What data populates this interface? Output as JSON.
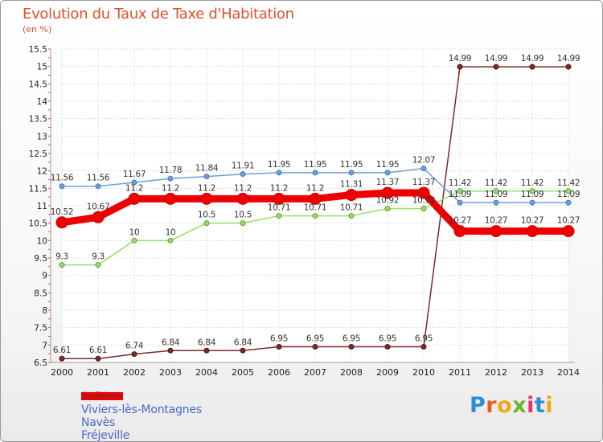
{
  "chart_data": {
    "type": "line",
    "title": "Evolution du Taux de Taxe d'Habitation",
    "ylabel": "(en %)",
    "x": [
      "2000",
      "2001",
      "2002",
      "2003",
      "2004",
      "2005",
      "2006",
      "2007",
      "2008",
      "2009",
      "2010",
      "2011",
      "2012",
      "2013",
      "2014"
    ],
    "ylim": [
      6.5,
      15.5
    ],
    "yticks": [
      "6.5",
      "7",
      "7.5",
      "8",
      "8.5",
      "9",
      "9.5",
      "10",
      "10.5",
      "11",
      "11.5",
      "12",
      "12.5",
      "13",
      "13.5",
      "14",
      "14.5",
      "15",
      "15.5"
    ],
    "series": [
      {
        "name": "SAïX",
        "color": "#ee0000",
        "values": [
          10.52,
          10.67,
          11.2,
          11.2,
          11.2,
          11.2,
          11.2,
          11.2,
          11.31,
          11.37,
          11.37,
          10.27,
          10.27,
          10.27,
          10.27
        ],
        "labels": [
          "10.52",
          "10.67",
          "11.2",
          "11.2",
          "11.2",
          "11.2",
          "11.2",
          "11.2",
          "11.31",
          "11.37",
          "11.37",
          "10.27",
          "10.27",
          "10.27",
          "10.27"
        ]
      },
      {
        "name": "Viviers-lès-Montagnes",
        "color": "#6f9ed6",
        "values": [
          11.56,
          11.56,
          11.67,
          11.78,
          11.84,
          11.91,
          11.95,
          11.95,
          11.95,
          11.95,
          12.07,
          11.09,
          11.09,
          11.09,
          11.09
        ],
        "labels": [
          "11.56",
          "11.56",
          "11.67",
          "11.78",
          "11.84",
          "11.91",
          "11.95",
          "11.95",
          "11.95",
          "11.95",
          "12.07",
          "11.09",
          "11.09",
          "11.09",
          "11.09"
        ]
      },
      {
        "name": "Navès",
        "color": "#99dd66",
        "values": [
          9.3,
          9.3,
          10,
          10,
          10.5,
          10.5,
          10.71,
          10.71,
          10.71,
          10.92,
          10.92,
          11.42,
          11.42,
          11.42,
          11.42
        ],
        "labels": [
          "9.3",
          "9.3",
          "10",
          "10",
          "10.5",
          "10.5",
          "10.71",
          "10.71",
          "10.71",
          "10.92",
          "10.92",
          "11.42",
          "11.42",
          "11.42",
          "11.42"
        ]
      },
      {
        "name": "Fréjeville",
        "color": "#7a2a2a",
        "values": [
          6.61,
          6.61,
          6.74,
          6.84,
          6.84,
          6.84,
          6.95,
          6.95,
          6.95,
          6.95,
          6.95,
          14.99,
          14.99,
          14.99,
          14.99
        ],
        "labels": [
          "6.61",
          "6.61",
          "6.74",
          "6.84",
          "6.84",
          "6.84",
          "6.95",
          "6.95",
          "6.95",
          "6.95",
          "6.95",
          "14.99",
          "14.99",
          "14.99",
          "14.99"
        ]
      }
    ]
  },
  "legend": {
    "saix": "SAïX",
    "viviers": "Viviers-lès-Montagnes",
    "naves": "Navès",
    "frejeville": "Fréjeville"
  },
  "logo": {
    "letters": [
      "P",
      "r",
      "o",
      "x",
      "i",
      "t",
      "i"
    ],
    "colors": [
      "#2a8fd6",
      "#e85a1e",
      "#f2a814",
      "#6ab832",
      "#e8336a",
      "#2a8fd6",
      "#f2a814"
    ]
  }
}
